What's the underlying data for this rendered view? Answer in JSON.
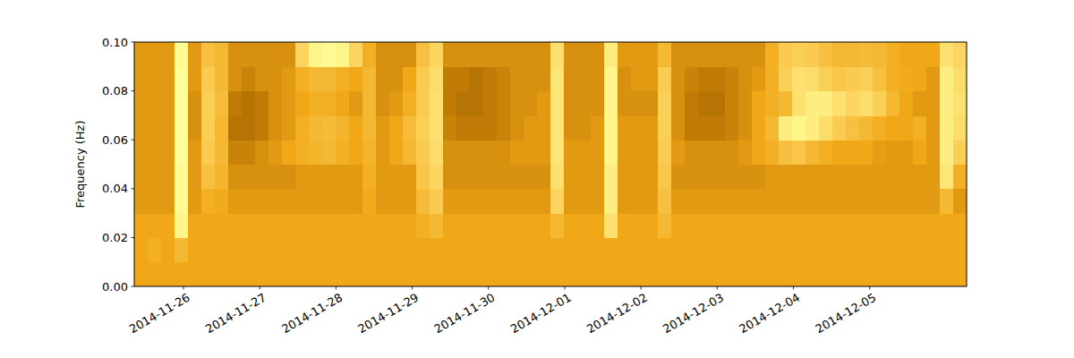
{
  "chart_data": {
    "type": "heatmap",
    "y_label": "Frequency (Hz)",
    "xlim": [
      "2014-11-25T08:30",
      "2014-12-06T06:30"
    ],
    "xticks": [
      "2014-11-26",
      "2014-11-27",
      "2014-11-28",
      "2014-11-29",
      "2014-11-30",
      "2014-12-01",
      "2014-12-02",
      "2014-12-03",
      "2014-12-04",
      "2014-12-05"
    ],
    "ylim": [
      0,
      0.1
    ],
    "yticks": [
      {
        "value": 0,
        "label": "0.00"
      },
      0.02,
      0.04,
      0.06,
      0.08,
      {
        "value": 0.1,
        "label": "0.10"
      }
    ],
    "zlim": [
      0,
      1
    ],
    "cells": [
      [
        0.5,
        0.5,
        0.5,
        0.5,
        0.5,
        0.5,
        0.5,
        0.5,
        0.5,
        0.5,
        0.5,
        0.5,
        0.5,
        0.5,
        0.5,
        0.5,
        0.5,
        0.5,
        0.5,
        0.5,
        0.5,
        0.5,
        0.5,
        0.5,
        0.5,
        0.5,
        0.5,
        0.5,
        0.5,
        0.5,
        0.5,
        0.5,
        0.5,
        0.5,
        0.5,
        0.5,
        0.5,
        0.5,
        0.5,
        0.5,
        0.5,
        0.5,
        0.5,
        0.5,
        0.5,
        0.5,
        0.5,
        0.5,
        0.5,
        0.5,
        0.5,
        0.5,
        0.5,
        0.5,
        0.5,
        0.5,
        0.5,
        0.5,
        0.5,
        0.5,
        0.5,
        0.5
      ],
      [
        0.5,
        0.55,
        0.5,
        0.6,
        0.5,
        0.5,
        0.5,
        0.5,
        0.5,
        0.5,
        0.5,
        0.5,
        0.5,
        0.5,
        0.5,
        0.5,
        0.5,
        0.5,
        0.5,
        0.5,
        0.5,
        0.5,
        0.5,
        0.5,
        0.5,
        0.5,
        0.5,
        0.5,
        0.5,
        0.5,
        0.5,
        0.5,
        0.5,
        0.5,
        0.5,
        0.5,
        0.5,
        0.5,
        0.5,
        0.5,
        0.5,
        0.5,
        0.5,
        0.5,
        0.5,
        0.5,
        0.5,
        0.5,
        0.5,
        0.5,
        0.5,
        0.5,
        0.5,
        0.5,
        0.5,
        0.5,
        0.5,
        0.5,
        0.5,
        0.5,
        0.5,
        0.5
      ],
      [
        0.5,
        0.5,
        0.5,
        0.88,
        0.5,
        0.5,
        0.5,
        0.5,
        0.5,
        0.5,
        0.5,
        0.5,
        0.5,
        0.5,
        0.5,
        0.5,
        0.5,
        0.5,
        0.5,
        0.5,
        0.5,
        0.55,
        0.6,
        0.5,
        0.5,
        0.5,
        0.5,
        0.5,
        0.5,
        0.5,
        0.5,
        0.6,
        0.5,
        0.5,
        0.5,
        0.8,
        0.5,
        0.5,
        0.5,
        0.6,
        0.5,
        0.5,
        0.5,
        0.5,
        0.5,
        0.5,
        0.5,
        0.5,
        0.5,
        0.5,
        0.5,
        0.5,
        0.5,
        0.5,
        0.5,
        0.5,
        0.5,
        0.5,
        0.5,
        0.5,
        0.5,
        0.5
      ],
      [
        0.47,
        0.47,
        0.47,
        0.9,
        0.47,
        0.55,
        0.52,
        0.47,
        0.47,
        0.47,
        0.47,
        0.47,
        0.47,
        0.47,
        0.47,
        0.47,
        0.47,
        0.52,
        0.47,
        0.47,
        0.47,
        0.62,
        0.7,
        0.47,
        0.47,
        0.47,
        0.47,
        0.47,
        0.47,
        0.47,
        0.47,
        0.75,
        0.47,
        0.47,
        0.47,
        0.85,
        0.47,
        0.47,
        0.47,
        0.65,
        0.47,
        0.47,
        0.47,
        0.47,
        0.47,
        0.47,
        0.47,
        0.47,
        0.47,
        0.47,
        0.47,
        0.47,
        0.47,
        0.47,
        0.47,
        0.47,
        0.47,
        0.47,
        0.47,
        0.47,
        0.6,
        0.47
      ],
      [
        0.47,
        0.47,
        0.47,
        0.9,
        0.47,
        0.65,
        0.58,
        0.45,
        0.45,
        0.45,
        0.45,
        0.45,
        0.47,
        0.47,
        0.47,
        0.47,
        0.47,
        0.55,
        0.47,
        0.47,
        0.47,
        0.68,
        0.75,
        0.45,
        0.45,
        0.45,
        0.45,
        0.45,
        0.45,
        0.45,
        0.45,
        0.8,
        0.47,
        0.47,
        0.47,
        0.85,
        0.47,
        0.47,
        0.47,
        0.68,
        0.45,
        0.45,
        0.45,
        0.45,
        0.45,
        0.45,
        0.45,
        0.47,
        0.47,
        0.47,
        0.47,
        0.47,
        0.47,
        0.47,
        0.47,
        0.47,
        0.47,
        0.47,
        0.47,
        0.47,
        0.82,
        0.55
      ],
      [
        0.47,
        0.47,
        0.47,
        0.92,
        0.47,
        0.7,
        0.6,
        0.42,
        0.42,
        0.45,
        0.47,
        0.5,
        0.55,
        0.58,
        0.6,
        0.55,
        0.5,
        0.58,
        0.47,
        0.5,
        0.6,
        0.7,
        0.78,
        0.45,
        0.45,
        0.45,
        0.45,
        0.45,
        0.47,
        0.47,
        0.47,
        0.82,
        0.47,
        0.47,
        0.47,
        0.88,
        0.47,
        0.47,
        0.47,
        0.7,
        0.47,
        0.45,
        0.45,
        0.45,
        0.45,
        0.47,
        0.5,
        0.55,
        0.65,
        0.68,
        0.6,
        0.55,
        0.5,
        0.5,
        0.5,
        0.48,
        0.47,
        0.47,
        0.5,
        0.47,
        0.85,
        0.72
      ],
      [
        0.47,
        0.47,
        0.47,
        0.92,
        0.45,
        0.72,
        0.6,
        0.38,
        0.38,
        0.4,
        0.45,
        0.47,
        0.55,
        0.6,
        0.62,
        0.58,
        0.5,
        0.6,
        0.47,
        0.5,
        0.62,
        0.72,
        0.8,
        0.42,
        0.4,
        0.4,
        0.4,
        0.42,
        0.45,
        0.47,
        0.47,
        0.82,
        0.45,
        0.45,
        0.47,
        0.88,
        0.47,
        0.47,
        0.47,
        0.72,
        0.45,
        0.4,
        0.4,
        0.4,
        0.42,
        0.45,
        0.5,
        0.6,
        0.85,
        0.88,
        0.85,
        0.78,
        0.7,
        0.65,
        0.6,
        0.55,
        0.5,
        0.5,
        0.55,
        0.47,
        0.85,
        0.78
      ],
      [
        0.47,
        0.47,
        0.47,
        0.92,
        0.45,
        0.72,
        0.62,
        0.4,
        0.38,
        0.4,
        0.45,
        0.47,
        0.5,
        0.55,
        0.55,
        0.5,
        0.47,
        0.6,
        0.45,
        0.47,
        0.55,
        0.7,
        0.8,
        0.4,
        0.38,
        0.38,
        0.4,
        0.42,
        0.45,
        0.45,
        0.47,
        0.82,
        0.45,
        0.45,
        0.45,
        0.88,
        0.45,
        0.45,
        0.45,
        0.72,
        0.45,
        0.4,
        0.38,
        0.38,
        0.42,
        0.45,
        0.5,
        0.55,
        0.6,
        0.8,
        0.85,
        0.85,
        0.8,
        0.75,
        0.78,
        0.72,
        0.6,
        0.5,
        0.47,
        0.47,
        0.85,
        0.8
      ],
      [
        0.47,
        0.47,
        0.47,
        0.92,
        0.47,
        0.7,
        0.6,
        0.45,
        0.42,
        0.45,
        0.45,
        0.47,
        0.55,
        0.6,
        0.6,
        0.55,
        0.5,
        0.6,
        0.45,
        0.45,
        0.5,
        0.7,
        0.78,
        0.4,
        0.4,
        0.38,
        0.4,
        0.42,
        0.45,
        0.45,
        0.45,
        0.82,
        0.45,
        0.45,
        0.45,
        0.88,
        0.45,
        0.47,
        0.47,
        0.7,
        0.45,
        0.42,
        0.4,
        0.4,
        0.42,
        0.45,
        0.47,
        0.55,
        0.72,
        0.8,
        0.78,
        0.72,
        0.68,
        0.7,
        0.72,
        0.65,
        0.55,
        0.52,
        0.5,
        0.47,
        0.85,
        0.78
      ],
      [
        0.47,
        0.47,
        0.47,
        0.9,
        0.47,
        0.65,
        0.6,
        0.45,
        0.45,
        0.45,
        0.45,
        0.45,
        0.75,
        0.88,
        0.9,
        0.88,
        0.75,
        0.55,
        0.45,
        0.45,
        0.45,
        0.65,
        0.75,
        0.45,
        0.45,
        0.45,
        0.45,
        0.45,
        0.45,
        0.45,
        0.45,
        0.8,
        0.45,
        0.45,
        0.45,
        0.85,
        0.47,
        0.47,
        0.47,
        0.6,
        0.45,
        0.45,
        0.45,
        0.45,
        0.45,
        0.45,
        0.45,
        0.55,
        0.7,
        0.72,
        0.7,
        0.65,
        0.6,
        0.6,
        0.62,
        0.6,
        0.55,
        0.5,
        0.5,
        0.5,
        0.8,
        0.75
      ]
    ]
  }
}
